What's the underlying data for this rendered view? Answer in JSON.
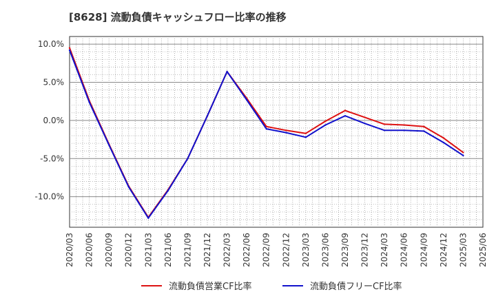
{
  "chart_data": {
    "type": "line",
    "title": "[8628]  流動負債キャッシュフロー比率の推移",
    "xlabel": "",
    "ylabel": "",
    "x": [
      "2020/03",
      "2020/06",
      "2020/09",
      "2020/12",
      "2021/03",
      "2021/06",
      "2021/09",
      "2021/12",
      "2022/03",
      "2022/06",
      "2022/09",
      "2022/12",
      "2023/03",
      "2023/06",
      "2023/09",
      "2023/12",
      "2024/03",
      "2024/06",
      "2024/09",
      "2024/12",
      "2025/03",
      "2025/06"
    ],
    "x_tick_labels": [
      "2020/03",
      "2020/06",
      "2020/09",
      "2020/12",
      "2021/03",
      "2021/06",
      "2021/09",
      "2021/12",
      "2022/03",
      "2022/06",
      "2022/09",
      "2022/12",
      "2023/03",
      "2023/06",
      "2023/09",
      "2023/12",
      "2024/03",
      "2024/06",
      "2024/09",
      "2024/12",
      "2025/03",
      "2025/06"
    ],
    "y_ticks": [
      10.0,
      5.0,
      0.0,
      -5.0,
      -10.0
    ],
    "y_tick_labels": [
      "10.0%",
      "5.0%",
      "0.0%",
      "-5.0%",
      "-10.0%"
    ],
    "ylim": [
      -14.0,
      11.0
    ],
    "grid": true,
    "legend_position": "bottom",
    "series": [
      {
        "name": "流動負債営業CF比率",
        "color": "#dd1111",
        "values": [
          9.5,
          2.6,
          -3.1,
          -8.6,
          -12.7,
          -9.1,
          -5.0,
          0.6,
          6.4,
          2.9,
          -0.8,
          -1.3,
          -1.7,
          -0.1,
          1.3,
          0.4,
          -0.5,
          -0.6,
          -0.8,
          -2.3,
          -4.2,
          null
        ]
      },
      {
        "name": "流動負債フリーCF比率",
        "color": "#1111cc",
        "values": [
          9.2,
          2.4,
          -3.2,
          -8.7,
          -12.8,
          -9.2,
          -5.0,
          0.6,
          6.4,
          2.7,
          -1.1,
          -1.6,
          -2.2,
          -0.6,
          0.6,
          -0.4,
          -1.3,
          -1.3,
          -1.4,
          -2.9,
          -4.6,
          null
        ]
      }
    ]
  }
}
